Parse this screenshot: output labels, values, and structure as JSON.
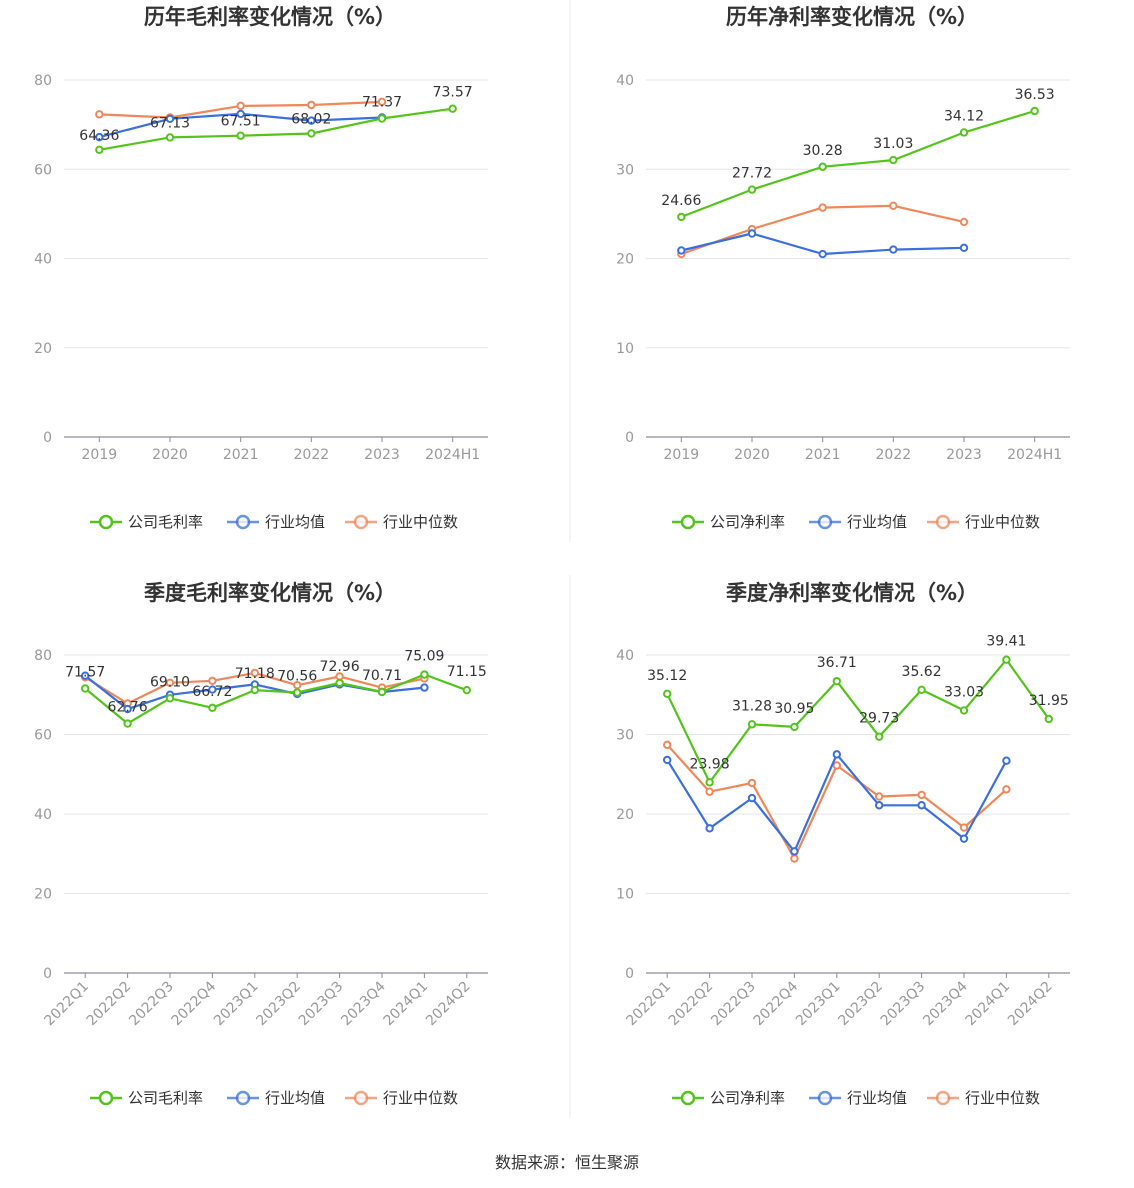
{
  "colors": {
    "company": "#52c41a",
    "avg": "#3a6fdc",
    "median": "#f0875a",
    "grid": "#e4e6ee",
    "axis": "#8c8c96",
    "divider": "#e8e8e8"
  },
  "legend_labels": {
    "gross": [
      "公司毛利率",
      "行业均值",
      "行业中位数"
    ],
    "net": [
      "公司净利率",
      "行业均值",
      "行业中位数"
    ]
  },
  "source": "数据来源：恒生聚源",
  "chart_data": [
    {
      "type": "line",
      "title": "历年毛利率变化情况（%）",
      "x": [
        "2019",
        "2020",
        "2021",
        "2022",
        "2023",
        "2024H1"
      ],
      "ylim": [
        0,
        80
      ],
      "yticks": [
        0,
        20,
        40,
        60,
        80
      ],
      "legend": "bottom",
      "series": [
        {
          "name": "公司毛利率",
          "values": [
            64.36,
            67.13,
            67.51,
            68.02,
            71.37,
            73.57
          ],
          "labels": [
            "64.36",
            "67.13",
            "67.51",
            "68.02",
            "71.37",
            "73.57"
          ]
        },
        {
          "name": "行业均值",
          "values": [
            67.2,
            71.3,
            72.4,
            70.9,
            71.6,
            null
          ]
        },
        {
          "name": "行业中位数",
          "values": [
            72.3,
            71.6,
            74.2,
            74.4,
            75.1,
            null
          ]
        }
      ]
    },
    {
      "type": "line",
      "title": "历年净利率变化情况（%）",
      "x": [
        "2019",
        "2020",
        "2021",
        "2022",
        "2023",
        "2024H1"
      ],
      "ylim": [
        0,
        40
      ],
      "yticks": [
        0,
        10,
        20,
        30,
        40
      ],
      "legend": "bottom",
      "series": [
        {
          "name": "公司净利率",
          "values": [
            24.66,
            27.72,
            30.28,
            31.03,
            34.12,
            36.53
          ],
          "labels": [
            "24.66",
            "27.72",
            "30.28",
            "31.03",
            "34.12",
            "36.53"
          ]
        },
        {
          "name": "行业均值",
          "values": [
            20.9,
            22.8,
            20.5,
            21.0,
            21.2,
            null
          ]
        },
        {
          "name": "行业中位数",
          "values": [
            20.5,
            23.3,
            25.7,
            25.9,
            24.1,
            null
          ]
        }
      ]
    },
    {
      "type": "line",
      "title": "季度毛利率变化情况（%）",
      "x": [
        "2022Q1",
        "2022Q2",
        "2022Q3",
        "2022Q4",
        "2023Q1",
        "2023Q2",
        "2023Q3",
        "2023Q4",
        "2024Q1",
        "2024Q2"
      ],
      "ylim": [
        0,
        80
      ],
      "yticks": [
        0,
        20,
        40,
        60,
        80
      ],
      "legend": "bottom",
      "series": [
        {
          "name": "公司毛利率",
          "values": [
            71.57,
            62.76,
            69.1,
            66.72,
            71.18,
            70.56,
            72.96,
            70.71,
            75.09,
            71.15
          ],
          "labels": [
            "71.57",
            "62.76",
            "69.10",
            "66.72",
            "71.18",
            "70.56",
            "72.96",
            "70.71",
            "75.09",
            "71.15"
          ]
        },
        {
          "name": "行业均值",
          "values": [
            74.8,
            66.4,
            70.0,
            71.3,
            72.6,
            70.2,
            72.6,
            70.7,
            71.8,
            null
          ]
        },
        {
          "name": "行业中位数",
          "values": [
            74.4,
            67.8,
            73.0,
            73.5,
            75.5,
            72.4,
            74.6,
            71.8,
            74.1,
            null
          ]
        }
      ]
    },
    {
      "type": "line",
      "title": "季度净利率变化情况（%）",
      "x": [
        "2022Q1",
        "2022Q2",
        "2022Q3",
        "2022Q4",
        "2023Q1",
        "2023Q2",
        "2023Q3",
        "2023Q4",
        "2024Q1",
        "2024Q2"
      ],
      "ylim": [
        0,
        40
      ],
      "yticks": [
        0,
        10,
        20,
        30,
        40
      ],
      "legend": "bottom",
      "series": [
        {
          "name": "公司净利率",
          "values": [
            35.12,
            23.98,
            31.28,
            30.95,
            36.71,
            29.73,
            35.62,
            33.03,
            39.41,
            31.95
          ],
          "labels": [
            "35.12",
            "23.98",
            "31.28",
            "30.95",
            "36.71",
            "29.73",
            "35.62",
            "33.03",
            "39.41",
            "31.95"
          ]
        },
        {
          "name": "行业均值",
          "values": [
            26.8,
            18.2,
            22.0,
            15.3,
            27.5,
            21.1,
            21.1,
            16.9,
            26.7,
            null
          ]
        },
        {
          "name": "行业中位数",
          "values": [
            28.7,
            22.8,
            23.9,
            14.4,
            26.1,
            22.2,
            22.4,
            18.3,
            23.1,
            null
          ]
        }
      ]
    }
  ]
}
